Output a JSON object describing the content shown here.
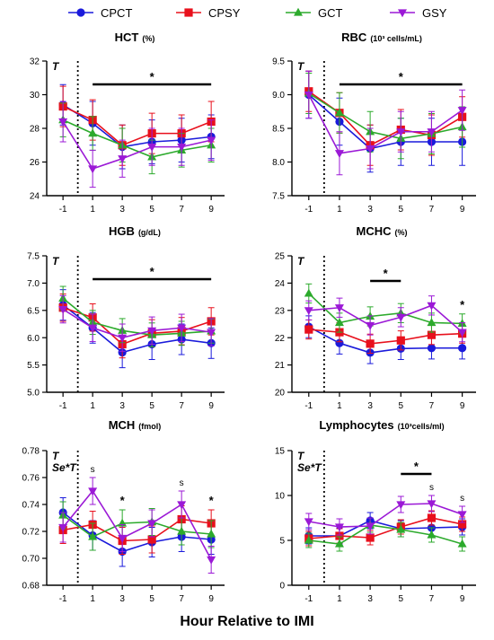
{
  "colors": {
    "CPCT": "#1a1adb",
    "CPSY": "#e8101c",
    "GCT": "#2caa2c",
    "GSY": "#9b19d6"
  },
  "legend": [
    {
      "name": "CPCT",
      "marker": "circle"
    },
    {
      "name": "CPSY",
      "marker": "square"
    },
    {
      "name": "GCT",
      "marker": "triangle"
    },
    {
      "name": "GSY",
      "marker": "triangle-down"
    }
  ],
  "x_axis_title": "Hour Relative to IMI",
  "chart_data": [
    {
      "type": "line",
      "title": "HCT",
      "unit": "(%)",
      "x": [
        -1,
        1,
        3,
        5,
        7,
        9
      ],
      "xticks": [
        "-1",
        "1",
        "3",
        "5",
        "7",
        "9"
      ],
      "ylim": [
        24,
        32
      ],
      "yticks": [
        "24",
        "26",
        "28",
        "30",
        "32"
      ],
      "effects": [
        "T"
      ],
      "series": [
        {
          "name": "CPCT",
          "values": [
            29.4,
            28.3,
            26.9,
            27.2,
            27.3,
            27.5
          ],
          "err": [
            1.2,
            1.3,
            1.3,
            1.3,
            1.3,
            1.3
          ]
        },
        {
          "name": "CPSY",
          "values": [
            29.3,
            28.5,
            27.0,
            27.7,
            27.7,
            28.4
          ],
          "err": [
            1.2,
            1.2,
            1.2,
            1.2,
            1.1,
            1.2
          ]
        },
        {
          "name": "GCT",
          "values": [
            28.5,
            27.7,
            27.0,
            26.3,
            26.7,
            27.0
          ],
          "err": [
            1.0,
            1.0,
            1.0,
            1.0,
            1.0,
            1.0
          ]
        },
        {
          "name": "GSY",
          "values": [
            28.4,
            25.6,
            26.2,
            26.9,
            26.9,
            27.3
          ],
          "err": [
            1.2,
            1.1,
            1.1,
            1.1,
            1.1,
            1.2
          ]
        }
      ],
      "sig_bar": {
        "from": 1,
        "to": 9,
        "label": "*"
      },
      "point_marks": []
    },
    {
      "type": "line",
      "title": "RBC",
      "unit": "(10³ cells/mL)",
      "x": [
        -1,
        1,
        3,
        5,
        7,
        9
      ],
      "xticks": [
        "-1",
        "1",
        "3",
        "5",
        "7",
        "9"
      ],
      "ylim": [
        7.5,
        9.5
      ],
      "yticks": [
        "7.5",
        "8.0",
        "8.5",
        "9.0",
        "9.5"
      ],
      "effects": [
        "T"
      ],
      "series": [
        {
          "name": "CPCT",
          "values": [
            9.0,
            8.6,
            8.2,
            8.3,
            8.3,
            8.3
          ],
          "err": [
            0.35,
            0.35,
            0.35,
            0.35,
            0.35,
            0.35
          ]
        },
        {
          "name": "CPSY",
          "values": [
            9.05,
            8.73,
            8.25,
            8.48,
            8.4,
            8.67
          ],
          "err": [
            0.3,
            0.3,
            0.3,
            0.3,
            0.3,
            0.3
          ]
        },
        {
          "name": "GCT",
          "values": [
            9.02,
            8.73,
            8.45,
            8.35,
            8.42,
            8.52
          ],
          "err": [
            0.3,
            0.3,
            0.3,
            0.3,
            0.3,
            0.3
          ]
        },
        {
          "name": "GSY",
          "values": [
            9.0,
            8.13,
            8.2,
            8.45,
            8.45,
            8.77
          ],
          "err": [
            0.35,
            0.32,
            0.3,
            0.3,
            0.3,
            0.3
          ]
        }
      ],
      "sig_bar": {
        "from": 1,
        "to": 9,
        "label": "*"
      },
      "point_marks": []
    },
    {
      "type": "line",
      "title": "HGB",
      "unit": "(g/dL)",
      "x": [
        -1,
        1,
        3,
        5,
        7,
        9
      ],
      "xticks": [
        "-1",
        "1",
        "3",
        "5",
        "7",
        "9"
      ],
      "ylim": [
        5.0,
        7.5
      ],
      "yticks": [
        "5.0",
        "5.5",
        "6.0",
        "6.5",
        "7.0",
        "7.5"
      ],
      "effects": [
        "T"
      ],
      "series": [
        {
          "name": "CPCT",
          "values": [
            6.6,
            6.18,
            5.73,
            5.88,
            5.97,
            5.9
          ],
          "err": [
            0.28,
            0.28,
            0.28,
            0.28,
            0.28,
            0.28
          ]
        },
        {
          "name": "CPSY",
          "values": [
            6.55,
            6.37,
            5.88,
            6.08,
            6.12,
            6.3
          ],
          "err": [
            0.25,
            0.25,
            0.25,
            0.25,
            0.25,
            0.25
          ]
        },
        {
          "name": "GCT",
          "values": [
            6.72,
            6.28,
            6.13,
            6.05,
            6.08,
            6.12
          ],
          "err": [
            0.22,
            0.22,
            0.22,
            0.22,
            0.22,
            0.22
          ]
        },
        {
          "name": "GSY",
          "values": [
            6.52,
            6.18,
            6.0,
            6.13,
            6.18,
            6.1
          ],
          "err": [
            0.25,
            0.25,
            0.25,
            0.25,
            0.25,
            0.25
          ]
        }
      ],
      "sig_bar": {
        "from": 1,
        "to": 9,
        "label": "*"
      },
      "point_marks": []
    },
    {
      "type": "line",
      "title": "MCHC",
      "unit": "(%)",
      "x": [
        -1,
        1,
        3,
        5,
        7,
        9
      ],
      "xticks": [
        "-1",
        "1",
        "3",
        "5",
        "7",
        "9"
      ],
      "ylim": [
        20,
        25
      ],
      "yticks": [
        "20",
        "21",
        "22",
        "23",
        "24",
        "25"
      ],
      "effects": [
        "T"
      ],
      "series": [
        {
          "name": "CPCT",
          "values": [
            22.4,
            21.8,
            21.45,
            21.6,
            21.62,
            21.62
          ],
          "err": [
            0.4,
            0.4,
            0.4,
            0.4,
            0.4,
            0.4
          ]
        },
        {
          "name": "CPSY",
          "values": [
            22.3,
            22.2,
            21.78,
            21.9,
            22.1,
            22.15
          ],
          "err": [
            0.35,
            0.35,
            0.35,
            0.35,
            0.35,
            0.35
          ]
        },
        {
          "name": "GCT",
          "values": [
            23.62,
            22.55,
            22.78,
            22.9,
            22.55,
            22.52
          ],
          "err": [
            0.35,
            0.35,
            0.35,
            0.35,
            0.35,
            0.35
          ]
        },
        {
          "name": "GSY",
          "values": [
            23.0,
            23.1,
            22.45,
            22.75,
            23.18,
            22.2
          ],
          "err": [
            0.35,
            0.35,
            0.35,
            0.35,
            0.35,
            0.35
          ]
        }
      ],
      "sig_bar": {
        "from": 3,
        "to": 5,
        "label": "*"
      },
      "point_marks": [
        {
          "x": 9,
          "label": "*"
        }
      ]
    },
    {
      "type": "line",
      "title": "MCH",
      "unit": "(fmol)",
      "x": [
        -1,
        1,
        3,
        5,
        7,
        9
      ],
      "xticks": [
        "-1",
        "1",
        "3",
        "5",
        "7",
        "9"
      ],
      "ylim": [
        0.68,
        0.78
      ],
      "yticks": [
        "0.68",
        "0.70",
        "0.72",
        "0.74",
        "0.76",
        "0.78"
      ],
      "effects": [
        "T",
        "Se*T"
      ],
      "series": [
        {
          "name": "CPCT",
          "values": [
            0.734,
            0.717,
            0.705,
            0.712,
            0.716,
            0.714
          ],
          "err": [
            0.011,
            0.011,
            0.011,
            0.011,
            0.011,
            0.011
          ]
        },
        {
          "name": "CPSY",
          "values": [
            0.721,
            0.725,
            0.713,
            0.714,
            0.729,
            0.726
          ],
          "err": [
            0.01,
            0.01,
            0.01,
            0.01,
            0.01,
            0.01
          ]
        },
        {
          "name": "GCT",
          "values": [
            0.732,
            0.716,
            0.726,
            0.727,
            0.72,
            0.718
          ],
          "err": [
            0.01,
            0.01,
            0.01,
            0.01,
            0.01,
            0.01
          ]
        },
        {
          "name": "GSY",
          "values": [
            0.723,
            0.75,
            0.715,
            0.726,
            0.74,
            0.699
          ],
          "err": [
            0.011,
            0.01,
            0.01,
            0.01,
            0.01,
            0.01
          ]
        }
      ],
      "sig_bar": null,
      "point_marks": [
        {
          "x": 1,
          "label": "s"
        },
        {
          "x": 3,
          "label": "*"
        },
        {
          "x": 7,
          "label": "s"
        },
        {
          "x": 9,
          "label": "*"
        }
      ]
    },
    {
      "type": "line",
      "title": "Lymphocytes",
      "unit": "(10³cells/ml)",
      "x": [
        -1,
        1,
        3,
        5,
        7,
        9
      ],
      "xticks": [
        "-1",
        "1",
        "3",
        "5",
        "7",
        "9"
      ],
      "ylim": [
        0,
        15
      ],
      "yticks": [
        "0",
        "5",
        "10",
        "15"
      ],
      "effects": [
        "T",
        "Se*T"
      ],
      "series": [
        {
          "name": "CPCT",
          "values": [
            5.5,
            5.5,
            7.2,
            6.3,
            6.4,
            6.5
          ],
          "err": [
            0.9,
            0.9,
            0.9,
            0.9,
            0.9,
            0.9
          ]
        },
        {
          "name": "CPSY",
          "values": [
            5.2,
            5.5,
            5.3,
            6.5,
            7.5,
            6.8
          ],
          "err": [
            0.8,
            0.8,
            0.8,
            0.8,
            0.8,
            0.8
          ]
        },
        {
          "name": "GCT",
          "values": [
            5.0,
            4.6,
            6.7,
            6.2,
            5.6,
            4.6
          ],
          "err": [
            0.8,
            0.8,
            0.8,
            0.8,
            0.8,
            0.8
          ]
        },
        {
          "name": "GSY",
          "values": [
            7.1,
            6.5,
            6.6,
            9.0,
            9.1,
            7.9
          ],
          "err": [
            0.9,
            0.9,
            0.9,
            0.9,
            0.9,
            0.9
          ]
        }
      ],
      "sig_bar": {
        "from": 5,
        "to": 7,
        "label": "*"
      },
      "point_marks": [
        {
          "x": 7,
          "label": "s"
        },
        {
          "x": 9,
          "label": "s"
        }
      ]
    }
  ]
}
